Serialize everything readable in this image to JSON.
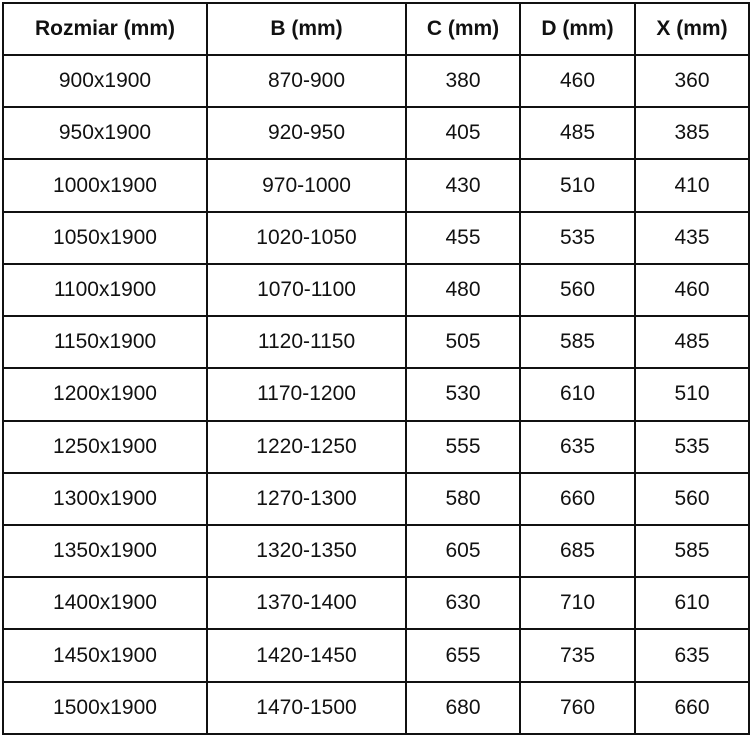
{
  "table": {
    "headers": [
      "Rozmiar (mm)",
      "B (mm)",
      "C (mm)",
      "D (mm)",
      "X (mm)"
    ],
    "rows": [
      [
        "900x1900",
        "870-900",
        "380",
        "460",
        "360"
      ],
      [
        "950x1900",
        "920-950",
        "405",
        "485",
        "385"
      ],
      [
        "1000x1900",
        "970-1000",
        "430",
        "510",
        "410"
      ],
      [
        "1050x1900",
        "1020-1050",
        "455",
        "535",
        "435"
      ],
      [
        "1100x1900",
        "1070-1100",
        "480",
        "560",
        "460"
      ],
      [
        "1150x1900",
        "1120-1150",
        "505",
        "585",
        "485"
      ],
      [
        "1200x1900",
        "1170-1200",
        "530",
        "610",
        "510"
      ],
      [
        "1250x1900",
        "1220-1250",
        "555",
        "635",
        "535"
      ],
      [
        "1300x1900",
        "1270-1300",
        "580",
        "660",
        "560"
      ],
      [
        "1350x1900",
        "1320-1350",
        "605",
        "685",
        "585"
      ],
      [
        "1400x1900",
        "1370-1400",
        "630",
        "710",
        "610"
      ],
      [
        "1450x1900",
        "1420-1450",
        "655",
        "735",
        "635"
      ],
      [
        "1500x1900",
        "1470-1500",
        "680",
        "760",
        "660"
      ]
    ]
  }
}
